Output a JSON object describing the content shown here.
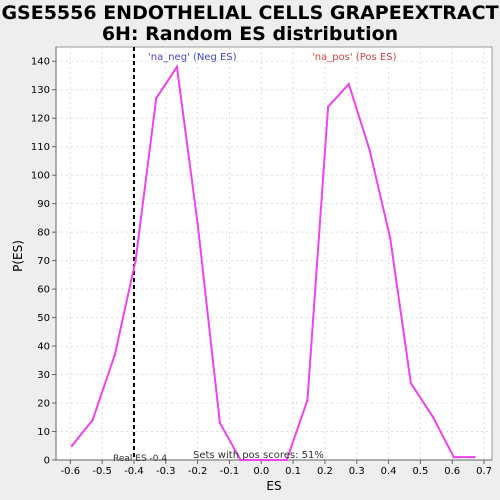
{
  "chart_data": {
    "type": "line",
    "title_lines": [
      "GSE5556 ENDOTHELIAL CELLS GRAPEEXTRACT",
      "6H: Random ES distribution"
    ],
    "xlabel": "ES",
    "ylabel": "P(ES)",
    "xlim": [
      -0.645,
      0.725
    ],
    "ylim": [
      0,
      145
    ],
    "x_ticks": [
      -0.6,
      -0.5,
      -0.4,
      -0.3,
      -0.2,
      -0.1,
      0.0,
      0.1,
      0.2,
      0.3,
      0.4,
      0.5,
      0.6,
      0.7
    ],
    "x_tick_labels": [
      "-0.6",
      "-0.5",
      "-0.4",
      "-0.3",
      "-0.2",
      "-0.1",
      "0.0",
      "0.1",
      "0.2",
      "0.3",
      "0.4",
      "0.5",
      "0.6",
      "0.7"
    ],
    "y_ticks": [
      0,
      10,
      20,
      30,
      40,
      50,
      60,
      70,
      80,
      90,
      100,
      110,
      120,
      130,
      140
    ],
    "y_tick_labels": [
      "0",
      "10",
      "20",
      "30",
      "40",
      "50",
      "60",
      "70",
      "80",
      "90",
      "100",
      "110",
      "120",
      "130",
      "140"
    ],
    "grid": true,
    "series": [
      {
        "name": "Random ES distribution",
        "color": "#ee44ee",
        "x": [
          -0.595,
          -0.53,
          -0.46,
          -0.395,
          -0.33,
          -0.265,
          -0.2,
          -0.13,
          -0.065,
          0.0,
          0.08,
          0.145,
          0.21,
          0.275,
          0.34,
          0.405,
          0.47,
          0.54,
          0.605,
          0.67
        ],
        "y": [
          5,
          14,
          37,
          70,
          127,
          138,
          83,
          13,
          0,
          0,
          0,
          21,
          124,
          132,
          109,
          78,
          27,
          15,
          1,
          1
        ]
      }
    ],
    "real_es": {
      "value": -0.4,
      "label": "Real ES -0.4"
    },
    "annotations": {
      "neg": {
        "text": "'na_neg' (Neg ES)",
        "color": "#4444cc"
      },
      "pos": {
        "text": "'na_pos' (Pos ES)",
        "color": "#cc4444"
      },
      "sets_text": "Sets with pos scores: 51%"
    }
  }
}
